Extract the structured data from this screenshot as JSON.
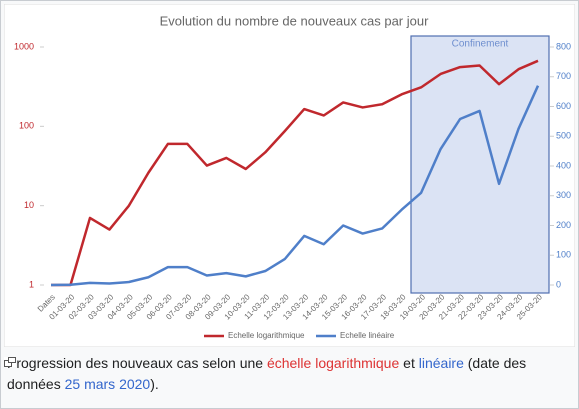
{
  "chart_data": {
    "type": "line",
    "title": "Evolution du nombre de nouveaux cas par jour",
    "categories": [
      "Dates",
      "01-03-20",
      "02-03-20",
      "03-03-20",
      "04-03-20",
      "05-03-20",
      "06-03-20",
      "07-03-20",
      "08-03-20",
      "09-03-20",
      "10-03-20",
      "11-03-20",
      "12-03-20",
      "13-03-20",
      "14-03-20",
      "15-03-20",
      "16-03-20",
      "17-03-20",
      "18-03-20",
      "19-03-20",
      "20-03-20",
      "21-03-20",
      "22-03-20",
      "23-03-20",
      "24-03-20",
      "25-03-20"
    ],
    "series": [
      {
        "name": "Echelle logarithmique",
        "color": "#c0282d",
        "axis": "y",
        "values": [
          1,
          1,
          7,
          5,
          10,
          26,
          60,
          60,
          32,
          40,
          29,
          47,
          87,
          165,
          137,
          200,
          173,
          190,
          253,
          310,
          457,
          558,
          585,
          340,
          525,
          670
        ]
      },
      {
        "name": "Echelle linéaire",
        "color": "#4f7fc9",
        "axis": "y2",
        "values": [
          0,
          1,
          7,
          5,
          10,
          26,
          60,
          60,
          32,
          40,
          29,
          47,
          87,
          165,
          137,
          200,
          173,
          190,
          253,
          310,
          457,
          558,
          585,
          340,
          525,
          670
        ]
      }
    ],
    "ylim": [
      1,
      1000
    ],
    "yticks": [
      1,
      10,
      100,
      1000
    ],
    "log_scale": true,
    "y2lim": [
      0,
      800
    ],
    "y2ticks": [
      0,
      100,
      200,
      300,
      400,
      500,
      600,
      700,
      800
    ],
    "annotation": "Confinement",
    "legend": "bottom",
    "grid": false
  },
  "caption": {
    "parts": [
      "Progression des nouveaux cas selon une ",
      "échelle logarithmique",
      " et ",
      "linéaire",
      " (date des données ",
      "25 mars 2020",
      ")."
    ]
  }
}
